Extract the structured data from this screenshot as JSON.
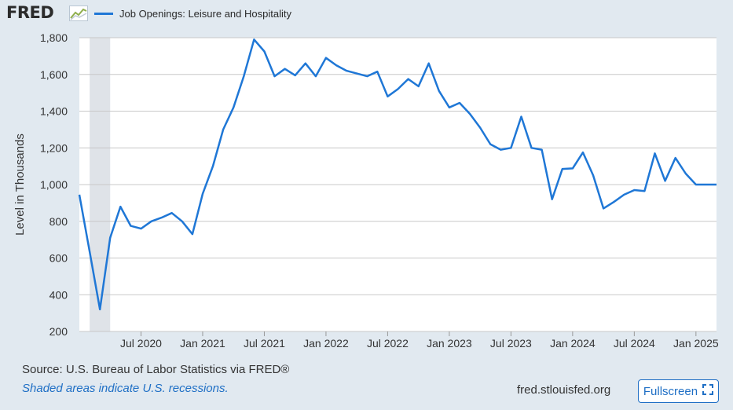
{
  "header": {
    "logo_text": "FRED",
    "logo_icon": "line-chart-icon"
  },
  "colors": {
    "series": "#1f77d6",
    "recession": "#dfe3e8",
    "plot_bg": "#ffffff",
    "page_bg": "#e1e9f0",
    "link": "#1f6fc5"
  },
  "chart_data": {
    "type": "line",
    "title": "",
    "xlabel": "",
    "ylabel": "Level in Thousands",
    "ylim": [
      200,
      1800
    ],
    "yticks": [
      200,
      400,
      600,
      800,
      1000,
      1200,
      1400,
      1600,
      1800
    ],
    "ytick_labels": [
      "200",
      "400",
      "600",
      "800",
      "1,000",
      "1,200",
      "1,400",
      "1,600",
      "1,800"
    ],
    "xlim": [
      "2020-01",
      "2025-03"
    ],
    "xticks": [
      "2020-07",
      "2021-01",
      "2021-07",
      "2022-01",
      "2022-07",
      "2023-01",
      "2023-07",
      "2024-01",
      "2024-07",
      "2025-01"
    ],
    "xtick_labels": [
      "Jul 2020",
      "Jan 2021",
      "Jul 2021",
      "Jan 2022",
      "Jul 2022",
      "Jan 2023",
      "Jul 2023",
      "Jan 2024",
      "Jul 2024",
      "Jan 2025"
    ],
    "grid": true,
    "legend": "top-left",
    "recessions": [
      {
        "start": "2020-02",
        "end": "2020-04"
      }
    ],
    "series": [
      {
        "name": "Job Openings: Leisure and Hospitality",
        "x": [
          "2020-01",
          "2020-02",
          "2020-03",
          "2020-04",
          "2020-05",
          "2020-06",
          "2020-07",
          "2020-08",
          "2020-09",
          "2020-10",
          "2020-11",
          "2020-12",
          "2021-01",
          "2021-02",
          "2021-03",
          "2021-04",
          "2021-05",
          "2021-06",
          "2021-07",
          "2021-08",
          "2021-09",
          "2021-10",
          "2021-11",
          "2021-12",
          "2022-01",
          "2022-02",
          "2022-03",
          "2022-04",
          "2022-05",
          "2022-06",
          "2022-07",
          "2022-08",
          "2022-09",
          "2022-10",
          "2022-11",
          "2022-12",
          "2023-01",
          "2023-02",
          "2023-03",
          "2023-04",
          "2023-05",
          "2023-06",
          "2023-07",
          "2023-08",
          "2023-09",
          "2023-10",
          "2023-11",
          "2023-12",
          "2024-01",
          "2024-02",
          "2024-03",
          "2024-04",
          "2024-05",
          "2024-06",
          "2024-07",
          "2024-08",
          "2024-09",
          "2024-10",
          "2024-11",
          "2024-12",
          "2025-01",
          "2025-02",
          "2025-03"
        ],
        "values": [
          945,
          635,
          320,
          710,
          880,
          775,
          760,
          800,
          820,
          845,
          800,
          730,
          950,
          1100,
          1300,
          1420,
          1590,
          1790,
          1725,
          1590,
          1630,
          1595,
          1660,
          1590,
          1690,
          1650,
          1620,
          1605,
          1590,
          1615,
          1480,
          1520,
          1575,
          1535,
          1660,
          1510,
          1420,
          1445,
          1385,
          1310,
          1220,
          1190,
          1200,
          1370,
          1200,
          1190,
          920,
          1085,
          1088,
          1175,
          1050,
          870,
          905,
          945,
          970,
          965,
          1170,
          1020,
          1145,
          1060,
          1000,
          1000,
          1000
        ]
      }
    ]
  },
  "footer": {
    "source": "Source: U.S. Bureau of Labor Statistics via FRED®",
    "recession_note": "Shaded areas indicate U.S. recessions.",
    "url": "fred.stlouisfed.org",
    "fullscreen_label": "Fullscreen",
    "fullscreen_icon": "expand-icon"
  }
}
